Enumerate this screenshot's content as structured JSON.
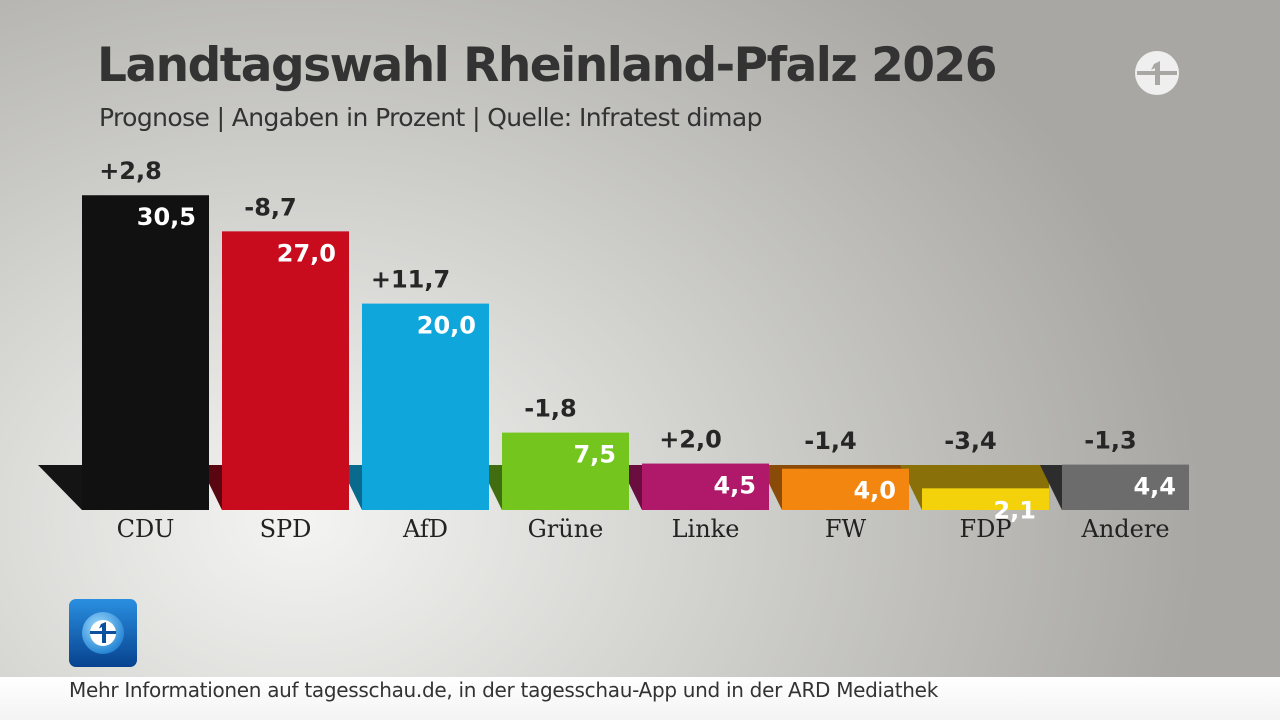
{
  "header": {
    "title": "Landtagswahl Rheinland-Pfalz 2026",
    "subtitle": "Prognose | Angaben in Prozent | Quelle: Infratest dimap"
  },
  "footer": {
    "text": "Mehr Informationen auf tagesschau.de, in der tagesschau-App und in der ARD Mediathek"
  },
  "icons": {
    "broadcaster_logo": "das-erste-logo-icon",
    "news_logo": "tagesschau-logo-icon"
  },
  "chart_data": {
    "type": "bar",
    "title": "Landtagswahl Rheinland-Pfalz 2026",
    "subtitle": "Prognose | Angaben in Prozent | Quelle: Infratest dimap",
    "categories": [
      "CDU",
      "SPD",
      "AfD",
      "Grüne",
      "Linke",
      "FW",
      "FDP",
      "Andere"
    ],
    "values": [
      30.5,
      27.0,
      20.0,
      7.5,
      4.5,
      4.0,
      2.1,
      4.4
    ],
    "value_labels": [
      "30,5",
      "27,0",
      "20,0",
      "7,5",
      "4,5",
      "4,0",
      "2,1",
      "4,4"
    ],
    "changes": [
      2.8,
      -8.7,
      11.7,
      -1.8,
      2.0,
      -1.4,
      -3.4,
      -1.3
    ],
    "change_labels": [
      "+2,8",
      "-8,7",
      "+11,7",
      "-1,8",
      "+2,0",
      "-1,4",
      "-3,4",
      "-1,3"
    ],
    "colors": [
      "#111111",
      "#c80c1e",
      "#0fa6dc",
      "#74c61e",
      "#b0196a",
      "#f3860f",
      "#f3d20b",
      "#6c6c6c"
    ],
    "shadow_colors": [
      "#141414",
      "#5a0610",
      "#0a6a8d",
      "#3f6d10",
      "#6a0e40",
      "#8a4a08",
      "#8a7008",
      "#2d2d2d"
    ],
    "ylim": [
      0,
      34
    ],
    "grid": false,
    "legend": "none",
    "xlabel": "",
    "ylabel": ""
  }
}
